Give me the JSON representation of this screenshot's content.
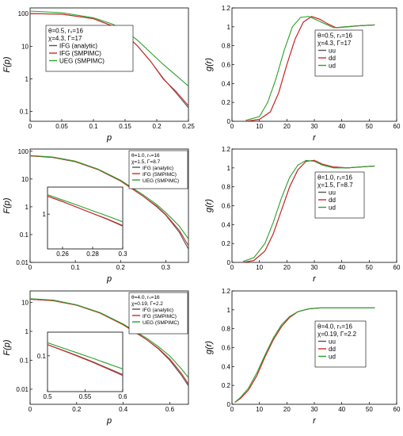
{
  "colors": {
    "ifg_analytic": "#555555",
    "ifg_smpimc": "#d62728",
    "ueg_smpimc": "#2ca02c",
    "uu": "#555555",
    "dd": "#d62728",
    "ud": "#2ca02c",
    "axis": "#000000"
  },
  "chart_data": [
    {
      "id": "p1",
      "type": "line",
      "xlabel": "p",
      "ylabel": "F(p)",
      "xlim": [
        0,
        0.25
      ],
      "ylim": [
        0.05,
        150
      ],
      "yscale": "log",
      "xticks": [
        0,
        0.05,
        0.1,
        0.15,
        0.2,
        0.25
      ],
      "xtick_labels": [
        "0",
        "0.05",
        "0.1",
        "0.15",
        "0.2",
        "0.25"
      ],
      "yticks": [
        0.1,
        1,
        10,
        100
      ],
      "ytick_labels": [
        "0.1",
        "1",
        "10",
        "100"
      ],
      "legend": {
        "params": [
          "θ=0.5, rₛ=16",
          "χ=4.3, Γ=17"
        ],
        "entries": [
          "IFG (analytic)",
          "IFG (SMPIMC)",
          "UEG (SMPIMC)"
        ],
        "position": "center"
      },
      "series": [
        {
          "name": "IFG (analytic)",
          "key": "ifg_analytic",
          "x": [
            0,
            0.05,
            0.1,
            0.13,
            0.15,
            0.17,
            0.19,
            0.21,
            0.23,
            0.25
          ],
          "y": [
            100,
            97,
            70,
            42,
            24,
            10,
            3.5,
            1.05,
            0.38,
            0.13
          ]
        },
        {
          "name": "IFG (SMPIMC)",
          "key": "ifg_smpimc",
          "x": [
            0,
            0.05,
            0.1,
            0.13,
            0.15,
            0.17,
            0.19,
            0.21,
            0.23,
            0.25
          ],
          "y": [
            100,
            97,
            70,
            42,
            24,
            10,
            3.5,
            1.0,
            0.42,
            0.15
          ]
        },
        {
          "name": "UEG (SMPIMC)",
          "key": "ueg_smpimc",
          "x": [
            0,
            0.05,
            0.1,
            0.13,
            0.15,
            0.17,
            0.19,
            0.21,
            0.23,
            0.25
          ],
          "y": [
            120,
            107,
            75,
            48,
            30,
            15,
            6.5,
            2.8,
            1.3,
            0.6
          ]
        }
      ]
    },
    {
      "id": "g1",
      "type": "line",
      "xlabel": "r",
      "ylabel": "g(r)",
      "xlim": [
        0,
        60
      ],
      "ylim": [
        0,
        1.2
      ],
      "xticks": [
        0,
        10,
        20,
        30,
        40,
        50,
        60
      ],
      "xtick_labels": [
        "0",
        "10",
        "20",
        "30",
        "40",
        "50",
        "60"
      ],
      "yticks": [
        0,
        0.2,
        0.4,
        0.6,
        0.8,
        1,
        1.2
      ],
      "ytick_labels": [
        "0",
        "0.2",
        "0.4",
        "0.6",
        "0.8",
        "1",
        "1.2"
      ],
      "legend": {
        "params": [
          "θ=0.5, rₛ=16",
          "χ=4.3, Γ=17"
        ],
        "entries": [
          "uu",
          "dd",
          "ud"
        ],
        "position": "right"
      },
      "series": [
        {
          "name": "uu",
          "key": "uu",
          "x": [
            5,
            10,
            14,
            17,
            20,
            23,
            26,
            29,
            32,
            35,
            38,
            42,
            46,
            52
          ],
          "y": [
            0,
            0.02,
            0.1,
            0.3,
            0.6,
            0.87,
            1.05,
            1.11,
            1.08,
            1.03,
            0.99,
            1.0,
            1.01,
            1.02
          ]
        },
        {
          "name": "dd",
          "key": "dd",
          "x": [
            5,
            10,
            14,
            17,
            20,
            23,
            26,
            29,
            32,
            35,
            38,
            42,
            46,
            52
          ],
          "y": [
            0,
            0.02,
            0.1,
            0.3,
            0.6,
            0.87,
            1.05,
            1.11,
            1.08,
            1.03,
            0.99,
            1.0,
            1.01,
            1.02
          ]
        },
        {
          "name": "ud",
          "key": "ud",
          "x": [
            5,
            10,
            13,
            16,
            19,
            22,
            25,
            28,
            31,
            34,
            37,
            41,
            46,
            52
          ],
          "y": [
            0.01,
            0.05,
            0.2,
            0.45,
            0.75,
            1.0,
            1.1,
            1.11,
            1.07,
            1.03,
            0.99,
            1.0,
            1.01,
            1.02
          ]
        }
      ]
    },
    {
      "id": "p2",
      "type": "line",
      "xlabel": "p",
      "ylabel": "F(p)",
      "xlim": [
        0,
        0.35
      ],
      "ylim": [
        0.01,
        120
      ],
      "yscale": "log",
      "xticks": [
        0,
        0.1,
        0.2,
        0.3
      ],
      "xtick_labels": [
        "0",
        "0.1",
        "0.2",
        "0.3"
      ],
      "yticks": [
        0.01,
        0.1,
        1,
        10,
        100
      ],
      "ytick_labels": [
        "0.01",
        "0.1",
        "1",
        "10",
        "100"
      ],
      "legend": {
        "params": [
          "θ=1.0, rₛ=16",
          "χ=1.5, Γ=8.7"
        ],
        "entries": [
          "IFG (analytic)",
          "IFG (SMPIMC)",
          "UEG (SMPIMC)"
        ],
        "position": "top-right"
      },
      "series": [
        {
          "name": "IFG (analytic)",
          "key": "ifg_analytic",
          "x": [
            0,
            0.05,
            0.1,
            0.15,
            0.2,
            0.25,
            0.28,
            0.3,
            0.33,
            0.35
          ],
          "y": [
            68,
            60,
            42,
            22,
            8.5,
            2.4,
            1.0,
            0.5,
            0.12,
            0.03
          ]
        },
        {
          "name": "IFG (SMPIMC)",
          "key": "ifg_smpimc",
          "x": [
            0,
            0.05,
            0.1,
            0.15,
            0.2,
            0.25,
            0.28,
            0.3,
            0.33,
            0.35
          ],
          "y": [
            68,
            60,
            42,
            22,
            8.5,
            2.4,
            1.05,
            0.52,
            0.14,
            0.04
          ]
        },
        {
          "name": "UEG (SMPIMC)",
          "key": "ueg_smpimc",
          "x": [
            0,
            0.05,
            0.1,
            0.15,
            0.2,
            0.25,
            0.28,
            0.3,
            0.33,
            0.35
          ],
          "y": [
            70,
            62,
            44,
            23,
            9,
            2.7,
            1.2,
            0.62,
            0.2,
            0.07
          ]
        }
      ],
      "inset": {
        "xlim": [
          0.25,
          0.3
        ],
        "ylim": [
          0.1,
          6
        ],
        "yscale": "log",
        "xticks": [
          0.26,
          0.28,
          0.3
        ],
        "xtick_labels": [
          "0.26",
          "0.28",
          "0.3"
        ],
        "yticks": [
          1
        ],
        "ytick_labels": [
          "1"
        ],
        "series": [
          {
            "key": "ifg_analytic",
            "x": [
              0.25,
              0.26,
              0.27,
              0.28,
              0.29,
              0.3
            ],
            "y": [
              3.3,
              2.3,
              1.55,
              1.05,
              0.7,
              0.45
            ]
          },
          {
            "key": "ifg_smpimc",
            "x": [
              0.25,
              0.26,
              0.27,
              0.28,
              0.29,
              0.3
            ],
            "y": [
              3.3,
              2.3,
              1.55,
              1.05,
              0.72,
              0.47
            ]
          },
          {
            "key": "ueg_smpimc",
            "x": [
              0.25,
              0.26,
              0.27,
              0.28,
              0.29,
              0.3
            ],
            "y": [
              3.6,
              2.55,
              1.8,
              1.25,
              0.88,
              0.6
            ]
          }
        ]
      }
    },
    {
      "id": "g2",
      "type": "line",
      "xlabel": "r",
      "ylabel": "g(r)",
      "xlim": [
        0,
        60
      ],
      "ylim": [
        0,
        1.2
      ],
      "xticks": [
        0,
        10,
        20,
        30,
        40,
        50,
        60
      ],
      "xtick_labels": [
        "0",
        "10",
        "20",
        "30",
        "40",
        "50",
        "60"
      ],
      "yticks": [
        0,
        0.2,
        0.4,
        0.6,
        0.8,
        1,
        1.2
      ],
      "ytick_labels": [
        "0",
        "0.2",
        "0.4",
        "0.6",
        "0.8",
        "1",
        "1.2"
      ],
      "legend": {
        "params": [
          "θ=1.0, rₛ=16",
          "χ=1.5, Γ=8.7"
        ],
        "entries": [
          "uu",
          "dd",
          "ud"
        ],
        "position": "right"
      },
      "series": [
        {
          "name": "uu",
          "key": "uu",
          "x": [
            4,
            8,
            12,
            15,
            18,
            21,
            24,
            27,
            30,
            33,
            37,
            42,
            47,
            52
          ],
          "y": [
            0,
            0.02,
            0.12,
            0.3,
            0.55,
            0.8,
            0.98,
            1.07,
            1.08,
            1.04,
            1.01,
            1.0,
            1.01,
            1.02
          ]
        },
        {
          "name": "dd",
          "key": "dd",
          "x": [
            4,
            8,
            12,
            15,
            18,
            21,
            24,
            27,
            30,
            33,
            37,
            42,
            47,
            52
          ],
          "y": [
            0,
            0.02,
            0.12,
            0.3,
            0.55,
            0.8,
            0.98,
            1.07,
            1.08,
            1.04,
            1.01,
            1.0,
            1.01,
            1.02
          ]
        },
        {
          "name": "ud",
          "key": "ud",
          "x": [
            4,
            8,
            12,
            15,
            18,
            21,
            24,
            27,
            30,
            33,
            37,
            42,
            47,
            52
          ],
          "y": [
            0.01,
            0.05,
            0.2,
            0.42,
            0.68,
            0.9,
            1.03,
            1.08,
            1.07,
            1.03,
            1.0,
            1.0,
            1.01,
            1.02
          ]
        }
      ]
    },
    {
      "id": "p3",
      "type": "line",
      "xlabel": "p",
      "ylabel": "F(p)",
      "xlim": [
        0,
        0.68
      ],
      "ylim": [
        0.003,
        25
      ],
      "yscale": "log",
      "xticks": [
        0,
        0.2,
        0.4,
        0.6
      ],
      "xtick_labels": [
        "0",
        "0.2",
        "0.4",
        "0.6"
      ],
      "yticks": [
        0.01,
        0.1,
        1,
        10
      ],
      "ytick_labels": [
        "0.01",
        "0.1",
        "1",
        "10"
      ],
      "legend": {
        "params": [
          "θ=4.0, rₛ=16",
          "χ=0.19, Γ=2.2"
        ],
        "entries": [
          "IFG (analytic)",
          "IFG (SMPIMC)",
          "UEG (SMPIMC)"
        ],
        "position": "top-right"
      },
      "series": [
        {
          "name": "IFG (analytic)",
          "key": "ifg_analytic",
          "x": [
            0,
            0.1,
            0.2,
            0.3,
            0.4,
            0.5,
            0.55,
            0.6,
            0.65,
            0.68
          ],
          "y": [
            13,
            11.5,
            8,
            4.3,
            1.7,
            0.52,
            0.25,
            0.1,
            0.03,
            0.013
          ]
        },
        {
          "name": "IFG (SMPIMC)",
          "key": "ifg_smpimc",
          "x": [
            0,
            0.1,
            0.2,
            0.3,
            0.4,
            0.5,
            0.55,
            0.6,
            0.65,
            0.68
          ],
          "y": [
            13,
            11.5,
            8,
            4.3,
            1.7,
            0.52,
            0.26,
            0.11,
            0.035,
            0.015
          ]
        },
        {
          "name": "UEG (SMPIMC)",
          "key": "ueg_smpimc",
          "x": [
            0,
            0.1,
            0.2,
            0.3,
            0.4,
            0.5,
            0.55,
            0.6,
            0.65,
            0.68
          ],
          "y": [
            13.5,
            12,
            8.3,
            4.5,
            1.8,
            0.58,
            0.3,
            0.14,
            0.05,
            0.025
          ]
        }
      ],
      "inset": {
        "xlim": [
          0.5,
          0.6
        ],
        "ylim": [
          0.015,
          0.35
        ],
        "yscale": "log",
        "xticks": [
          0.5,
          0.55,
          0.6
        ],
        "xtick_labels": [
          "0.5",
          "0.55",
          "0.6"
        ],
        "yticks": [
          0.1
        ],
        "ytick_labels": [
          "0.1"
        ],
        "series": [
          {
            "key": "ifg_analytic",
            "x": [
              0.5,
              0.52,
              0.54,
              0.56,
              0.58,
              0.6
            ],
            "y": [
              0.18,
              0.135,
              0.1,
              0.073,
              0.052,
              0.037
            ]
          },
          {
            "key": "ifg_smpimc",
            "x": [
              0.5,
              0.52,
              0.54,
              0.56,
              0.58,
              0.6
            ],
            "y": [
              0.18,
              0.133,
              0.098,
              0.071,
              0.05,
              0.035
            ]
          },
          {
            "key": "ueg_smpimc",
            "x": [
              0.5,
              0.52,
              0.54,
              0.56,
              0.58,
              0.6
            ],
            "y": [
              0.2,
              0.152,
              0.116,
              0.088,
              0.066,
              0.05
            ]
          }
        ]
      }
    },
    {
      "id": "g3",
      "type": "line",
      "xlabel": "r",
      "ylabel": "g(r)",
      "xlim": [
        0,
        60
      ],
      "ylim": [
        0,
        1.2
      ],
      "xticks": [
        0,
        10,
        20,
        30,
        40,
        50,
        60
      ],
      "xtick_labels": [
        "0",
        "10",
        "20",
        "30",
        "40",
        "50",
        "60"
      ],
      "yticks": [
        0,
        0.2,
        0.4,
        0.6,
        0.8,
        1,
        1.2
      ],
      "ytick_labels": [
        "0",
        "0.2",
        "0.4",
        "0.6",
        "0.8",
        "1",
        "1.2"
      ],
      "legend": {
        "params": [
          "θ=4.0, rₛ=16",
          "χ=0.19, Γ=2.2"
        ],
        "entries": [
          "uu",
          "dd",
          "ud"
        ],
        "position": "center-right"
      },
      "series": [
        {
          "name": "uu",
          "key": "uu",
          "x": [
            1,
            3,
            6,
            9,
            12,
            15,
            18,
            21,
            24,
            28,
            32,
            38,
            45,
            52
          ],
          "y": [
            0.02,
            0.06,
            0.15,
            0.3,
            0.5,
            0.68,
            0.82,
            0.92,
            0.98,
            1.01,
            1.02,
            1.02,
            1.02,
            1.02
          ]
        },
        {
          "name": "dd",
          "key": "dd",
          "x": [
            1,
            3,
            6,
            9,
            12,
            15,
            18,
            21,
            24,
            28,
            32,
            38,
            45,
            52
          ],
          "y": [
            0.02,
            0.06,
            0.15,
            0.3,
            0.5,
            0.68,
            0.82,
            0.92,
            0.98,
            1.01,
            1.02,
            1.02,
            1.02,
            1.02
          ]
        },
        {
          "name": "ud",
          "key": "ud",
          "x": [
            1,
            3,
            6,
            9,
            12,
            15,
            18,
            21,
            24,
            28,
            32,
            38,
            45,
            52
          ],
          "y": [
            0.02,
            0.07,
            0.17,
            0.33,
            0.52,
            0.7,
            0.84,
            0.93,
            0.98,
            1.01,
            1.02,
            1.02,
            1.02,
            1.02
          ]
        }
      ]
    }
  ]
}
